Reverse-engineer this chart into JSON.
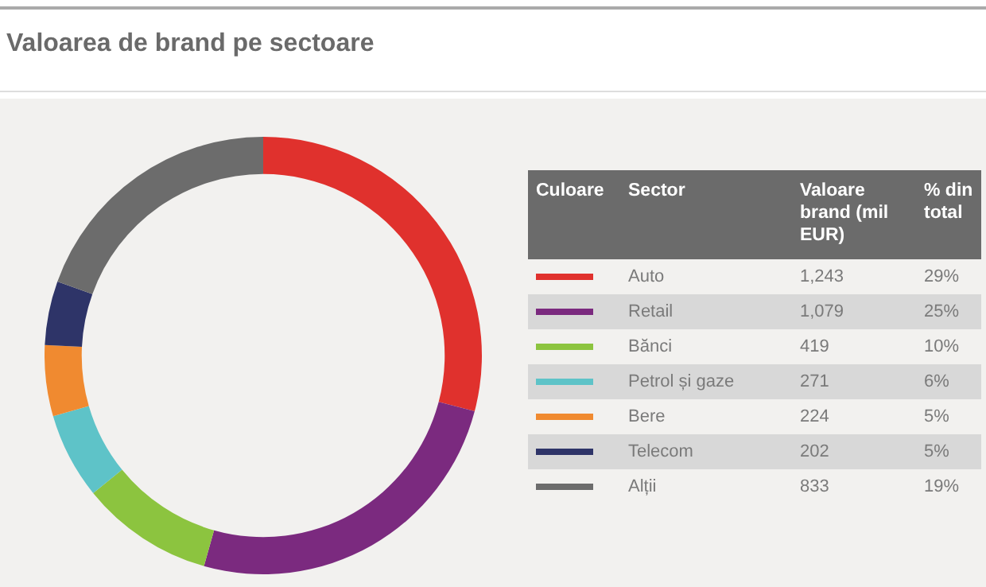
{
  "chart_data": {
    "type": "donut",
    "title": "Valoarea de brand pe sectoare",
    "categories": [
      "Auto",
      "Retail",
      "Bănci",
      "Petrol și gaze",
      "Bere",
      "Telecom",
      "Alții"
    ],
    "values": [
      1243,
      1079,
      419,
      271,
      224,
      202,
      833
    ],
    "value_labels": [
      "1,243",
      "1,079",
      "419",
      "271",
      "224",
      "202",
      "833"
    ],
    "colors": [
      "#e0312d",
      "#7b2a7f",
      "#8cc43f",
      "#5ec3c8",
      "#f08a30",
      "#2e3468",
      "#6c6c6c"
    ],
    "annotations": [
      "Culoare",
      "Sector",
      "Valoare brand (mil EUR)",
      "% din total",
      "29%",
      "25%",
      "10%",
      "6%",
      "5%",
      "5%",
      "19%"
    ],
    "legend": "right"
  }
}
